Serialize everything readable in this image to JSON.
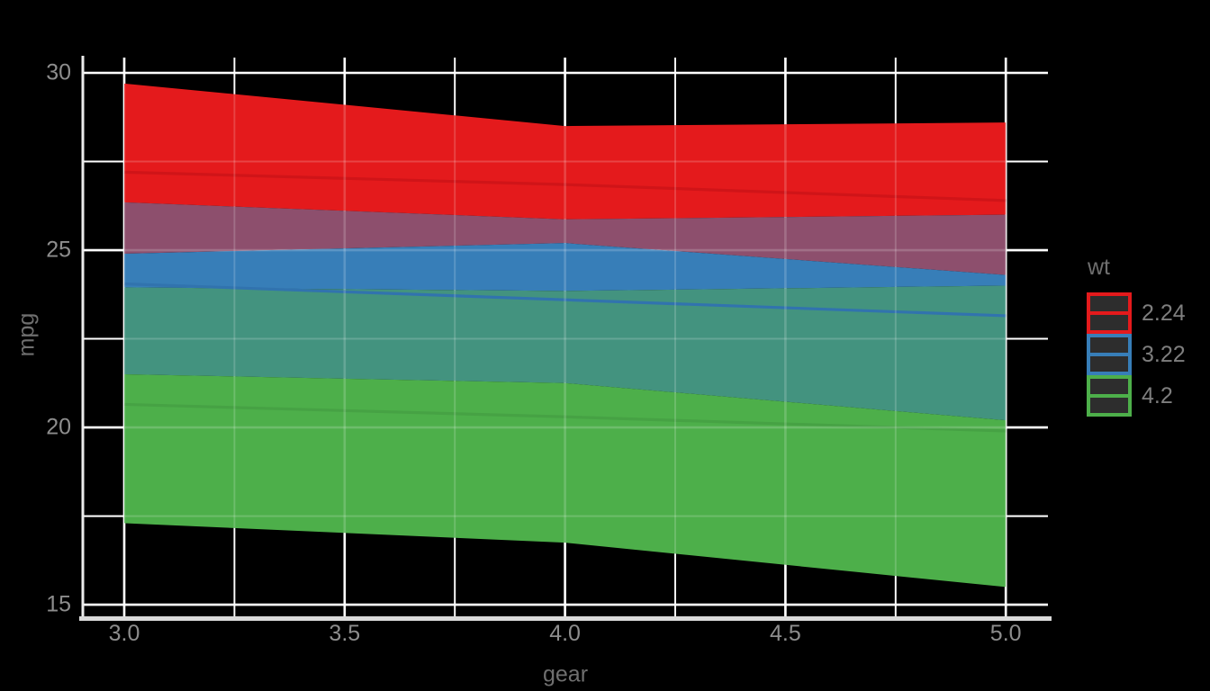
{
  "chart_data": {
    "type": "area",
    "title": "",
    "xlabel": "gear",
    "ylabel": "mpg",
    "xlim": [
      3.0,
      5.0
    ],
    "ylim": [
      15,
      30
    ],
    "grid": true,
    "background_color": "#000000",
    "grid_color": "#ffffff",
    "axis_line_color": "#d9d9d9",
    "tick_label_color": "#8d8d8d",
    "axis_title_color": "#6f6f6f",
    "x_ticks": [
      {
        "value": 3.0,
        "label": "3.0"
      },
      {
        "value": 3.5,
        "label": "3.5"
      },
      {
        "value": 4.0,
        "label": "4.0"
      },
      {
        "value": 4.5,
        "label": "4.5"
      },
      {
        "value": 5.0,
        "label": "5.0"
      }
    ],
    "x_minor": [
      3.25,
      3.75,
      4.25,
      4.75
    ],
    "y_ticks": [
      {
        "value": 30,
        "label": "30"
      },
      {
        "value": 25,
        "label": "25"
      },
      {
        "value": 20,
        "label": "20"
      },
      {
        "value": 15,
        "label": "15"
      }
    ],
    "y_minor": [
      27.5,
      22.5,
      17.5
    ],
    "x": [
      3,
      4,
      5
    ],
    "series": [
      {
        "name": "2.24",
        "color": "#e41a1c",
        "line_color": "#d01418",
        "line": [
          27.2,
          26.85,
          26.4
        ],
        "ymin": [
          24.9,
          25.2,
          24.3
        ],
        "ymax": [
          29.7,
          28.5,
          28.6
        ]
      },
      {
        "name": "3.22",
        "color": "#377eb8",
        "line_color": "#3173ae",
        "line": [
          24.05,
          23.6,
          23.15
        ],
        "ymin": [
          21.5,
          21.25,
          20.2
        ],
        "ymax": [
          26.35,
          25.87,
          26.0
        ]
      },
      {
        "name": "4.2",
        "color": "#4daf4a",
        "line_color": "#46a244",
        "line": [
          20.65,
          20.3,
          19.9
        ],
        "ymin": [
          17.3,
          16.75,
          15.5
        ],
        "ymax": [
          23.95,
          23.85,
          24.0
        ]
      }
    ],
    "overlap_colors": {
      "red_blue": "#8d4f6d",
      "blue_green": "#43937f"
    },
    "legend": {
      "title": "wt",
      "position": "right",
      "key_fill": "#2d2d2d",
      "entries": [
        {
          "label": "2.24",
          "color": "#e41a1c"
        },
        {
          "label": "3.22",
          "color": "#377eb8"
        },
        {
          "label": "4.2",
          "color": "#4daf4a"
        }
      ]
    }
  }
}
